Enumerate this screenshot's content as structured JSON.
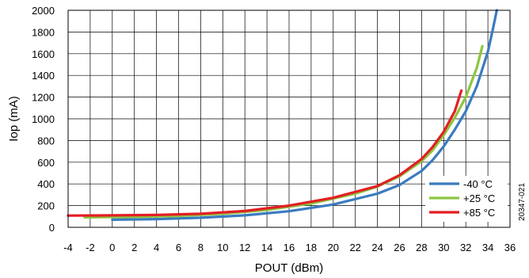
{
  "chart_data": {
    "type": "line",
    "title": "",
    "xlabel": "POUT (dBm)",
    "ylabel": "Iop (mA)",
    "xlim": [
      -4,
      36
    ],
    "ylim": [
      0,
      2000
    ],
    "x_ticks": [
      -4,
      -2,
      0,
      2,
      4,
      6,
      8,
      10,
      12,
      14,
      16,
      18,
      20,
      22,
      24,
      26,
      28,
      30,
      32,
      34,
      36
    ],
    "y_ticks": [
      0,
      200,
      400,
      600,
      800,
      1000,
      1200,
      1400,
      1600,
      1800,
      2000
    ],
    "grid": true,
    "legend_position": "bottom-right",
    "series": [
      {
        "name": "-40 °C",
        "color": "#3a7bbf",
        "points": [
          [
            0,
            70
          ],
          [
            4,
            76
          ],
          [
            8,
            88
          ],
          [
            12,
            110
          ],
          [
            16,
            148
          ],
          [
            20,
            210
          ],
          [
            24,
            310
          ],
          [
            26,
            390
          ],
          [
            28,
            520
          ],
          [
            29,
            620
          ],
          [
            30,
            745
          ],
          [
            31,
            900
          ],
          [
            32,
            1070
          ],
          [
            33,
            1300
          ],
          [
            34,
            1620
          ],
          [
            34.5,
            1850
          ],
          [
            34.8,
            2000
          ]
        ]
      },
      {
        "name": "+25 °C",
        "color": "#8cc63f",
        "points": [
          [
            -2.5,
            92
          ],
          [
            2,
            96
          ],
          [
            6,
            105
          ],
          [
            10,
            125
          ],
          [
            14,
            160
          ],
          [
            18,
            220
          ],
          [
            22,
            310
          ],
          [
            24,
            375
          ],
          [
            26,
            470
          ],
          [
            28,
            610
          ],
          [
            29,
            710
          ],
          [
            30,
            850
          ],
          [
            31,
            1010
          ],
          [
            32,
            1200
          ],
          [
            33,
            1470
          ],
          [
            33.5,
            1670
          ]
        ]
      },
      {
        "name": "+85 °C",
        "color": "#e31e24",
        "points": [
          [
            -4,
            108
          ],
          [
            0,
            110
          ],
          [
            4,
            114
          ],
          [
            8,
            125
          ],
          [
            12,
            150
          ],
          [
            16,
            200
          ],
          [
            20,
            272
          ],
          [
            24,
            380
          ],
          [
            26,
            480
          ],
          [
            28,
            630
          ],
          [
            29,
            740
          ],
          [
            30,
            880
          ],
          [
            31,
            1070
          ],
          [
            31.6,
            1260
          ]
        ]
      }
    ]
  },
  "figure_id": "20347-021"
}
